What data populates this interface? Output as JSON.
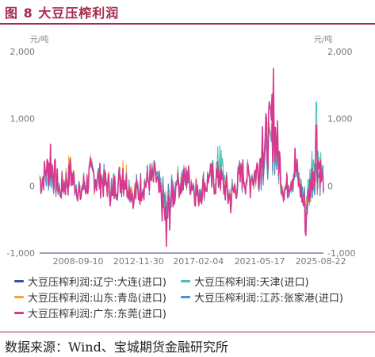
{
  "figure": {
    "title": "图 8 大豆压榨利润",
    "source": "数据来源：Wind、宝城期货金融研究所"
  },
  "chart_data": {
    "type": "line",
    "left_unit": "元/吨",
    "right_unit": "元/吨",
    "ylim": [
      -1000,
      2000
    ],
    "y_ticks": [
      -1000,
      0,
      1000,
      2000
    ],
    "y_tick_labels": [
      "-1,000",
      "0",
      "1,000",
      "2,000"
    ],
    "x_tick_labels": [
      "2008-09-10",
      "2012-11-30",
      "2017-02-04",
      "2021-05-17",
      "2025-08-22"
    ],
    "grid": false,
    "legend_position": "bottom",
    "series": [
      {
        "name": "大豆压榨利润:辽宁:大连(进口)",
        "color": "#3f4fa0",
        "x": [
          "2006-01",
          "2006-10",
          "2007-06",
          "2008-03",
          "2008-11",
          "2009-08",
          "2010-05",
          "2011-02",
          "2011-11",
          "2012-08",
          "2013-05",
          "2014-02",
          "2014-11",
          "2015-08",
          "2016-05",
          "2017-02",
          "2017-11",
          "2018-08",
          "2019-05",
          "2020-02",
          "2020-11",
          "2021-08",
          "2022-05",
          "2023-02",
          "2023-11",
          "2024-08",
          "2025-05",
          "2025-10"
        ],
        "values": [
          150,
          380,
          -80,
          260,
          -120,
          320,
          140,
          -60,
          210,
          -180,
          90,
          250,
          -520,
          60,
          220,
          -90,
          160,
          240,
          -280,
          330,
          150,
          560,
          1180,
          -120,
          420,
          -430,
          320,
          240
        ]
      },
      {
        "name": "大豆压榨利润:天津(进口)",
        "color": "#3fc4b4",
        "x": [
          "2006-01",
          "2006-10",
          "2007-06",
          "2008-03",
          "2008-11",
          "2009-08",
          "2010-05",
          "2011-02",
          "2011-11",
          "2012-08",
          "2013-05",
          "2014-02",
          "2014-11",
          "2015-08",
          "2016-05",
          "2017-02",
          "2017-11",
          "2018-08",
          "2019-05",
          "2020-02",
          "2020-11",
          "2021-08",
          "2022-05",
          "2023-02",
          "2023-11",
          "2024-08",
          "2025-05",
          "2025-10"
        ],
        "values": [
          140,
          360,
          -60,
          280,
          -100,
          300,
          170,
          -40,
          230,
          -160,
          110,
          230,
          -500,
          80,
          240,
          -70,
          180,
          600,
          -260,
          310,
          170,
          540,
          1160,
          -100,
          400,
          -410,
          1250,
          260
        ]
      },
      {
        "name": "大豆压榨利润:山东:青岛(进口)",
        "color": "#f4a23c",
        "x": [
          "2006-01",
          "2006-10",
          "2007-06",
          "2008-03",
          "2008-11",
          "2009-08",
          "2010-05",
          "2011-02",
          "2011-11",
          "2012-08",
          "2013-05",
          "2014-02",
          "2014-11",
          "2015-08",
          "2016-05",
          "2017-02",
          "2017-11",
          "2018-08",
          "2019-05",
          "2020-02",
          "2020-11",
          "2021-08",
          "2022-05",
          "2023-02",
          "2023-11",
          "2024-08",
          "2025-05",
          "2025-10"
        ],
        "values": [
          160,
          390,
          -50,
          420,
          -110,
          330,
          160,
          -30,
          380,
          -170,
          100,
          260,
          -540,
          70,
          230,
          -80,
          170,
          250,
          -270,
          340,
          160,
          570,
          1170,
          -110,
          430,
          -420,
          330,
          250
        ]
      },
      {
        "name": "大豆压榨利润:江苏:张家港(进口)",
        "color": "#4a8fd0",
        "x": [
          "2006-01",
          "2006-10",
          "2007-06",
          "2008-03",
          "2008-11",
          "2009-08",
          "2010-05",
          "2011-02",
          "2011-11",
          "2012-08",
          "2013-05",
          "2014-02",
          "2014-11",
          "2015-08",
          "2016-05",
          "2017-02",
          "2017-11",
          "2018-08",
          "2019-05",
          "2020-02",
          "2020-11",
          "2021-08",
          "2022-05",
          "2023-02",
          "2023-11",
          "2024-08",
          "2025-05",
          "2025-10"
        ],
        "values": [
          130,
          350,
          -70,
          270,
          -130,
          310,
          150,
          -50,
          220,
          -190,
          80,
          240,
          -510,
          50,
          210,
          -100,
          150,
          230,
          -290,
          320,
          140,
          550,
          1150,
          -130,
          410,
          -440,
          310,
          230
        ]
      },
      {
        "name": "大豆压榨利润:广东:东莞(进口)",
        "color": "#d6398e",
        "x": [
          "2006-01",
          "2006-10",
          "2007-06",
          "2008-03",
          "2008-11",
          "2009-08",
          "2010-05",
          "2011-02",
          "2011-11",
          "2012-08",
          "2013-05",
          "2014-02",
          "2014-11",
          "2015-08",
          "2016-05",
          "2017-02",
          "2017-11",
          "2018-08",
          "2019-05",
          "2020-02",
          "2020-11",
          "2021-08",
          "2022-05",
          "2023-02",
          "2023-11",
          "2024-08",
          "2025-05",
          "2025-10"
        ],
        "values": [
          100,
          620,
          -150,
          300,
          -200,
          280,
          120,
          -140,
          260,
          -260,
          60,
          200,
          -900,
          20,
          180,
          -200,
          120,
          200,
          -400,
          290,
          100,
          880,
          1750,
          -200,
          560,
          -740,
          900,
          150
        ]
      }
    ]
  }
}
